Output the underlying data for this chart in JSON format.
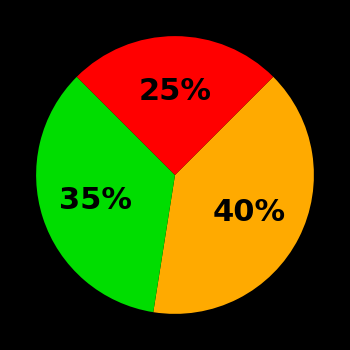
{
  "slices": [
    {
      "label": "40%",
      "value": 40,
      "color": "#ffaa00"
    },
    {
      "label": "35%",
      "value": 35,
      "color": "#00dd00"
    },
    {
      "label": "25%",
      "value": 25,
      "color": "#ff0000"
    }
  ],
  "background_color": "#000000",
  "text_color": "#000000",
  "font_size": 22,
  "font_weight": "bold",
  "startangle": 45,
  "figsize": [
    3.5,
    3.5
  ],
  "dpi": 100
}
